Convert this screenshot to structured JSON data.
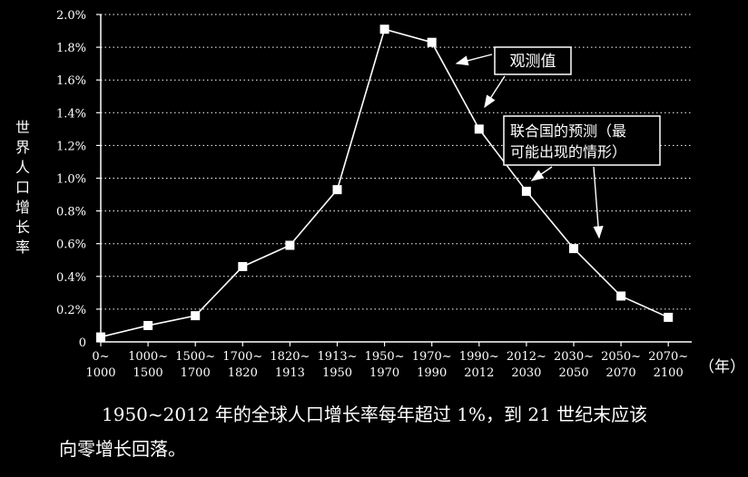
{
  "chart_data": {
    "type": "line",
    "title": "",
    "ylabel": "世界人口增长率",
    "xlabel": "（年）",
    "ylim": [
      0,
      2.0
    ],
    "yticks": [
      "0",
      "0.2%",
      "0.4%",
      "0.6%",
      "0.8%",
      "1.0%",
      "1.2%",
      "1.4%",
      "1.6%",
      "1.8%",
      "2.0%"
    ],
    "categories": [
      {
        "top": "0~",
        "bottom": "1000"
      },
      {
        "top": "1000~",
        "bottom": "1500"
      },
      {
        "top": "1500~",
        "bottom": "1700"
      },
      {
        "top": "1700~",
        "bottom": "1820"
      },
      {
        "top": "1820~",
        "bottom": "1913"
      },
      {
        "top": "1913~",
        "bottom": "1950"
      },
      {
        "top": "1950~",
        "bottom": "1970"
      },
      {
        "top": "1970~",
        "bottom": "1990"
      },
      {
        "top": "1990~",
        "bottom": "2012"
      },
      {
        "top": "2012~",
        "bottom": "2030"
      },
      {
        "top": "2030~",
        "bottom": "2050"
      },
      {
        "top": "2050~",
        "bottom": "2070"
      },
      {
        "top": "2070~",
        "bottom": "2100"
      }
    ],
    "values": [
      0.03,
      0.1,
      0.16,
      0.46,
      0.59,
      0.93,
      1.91,
      1.83,
      1.3,
      0.92,
      0.57,
      0.28,
      0.15
    ],
    "annotations": {
      "observed": "观测值",
      "projection_line1": "联合国的预测（最",
      "projection_line2": "可能出现的情形）"
    }
  },
  "caption": {
    "line1": "1950~2012 年的全球人口增长率每年超过 1%，到 21 世纪末应该",
    "line2": "向零增长回落。"
  }
}
